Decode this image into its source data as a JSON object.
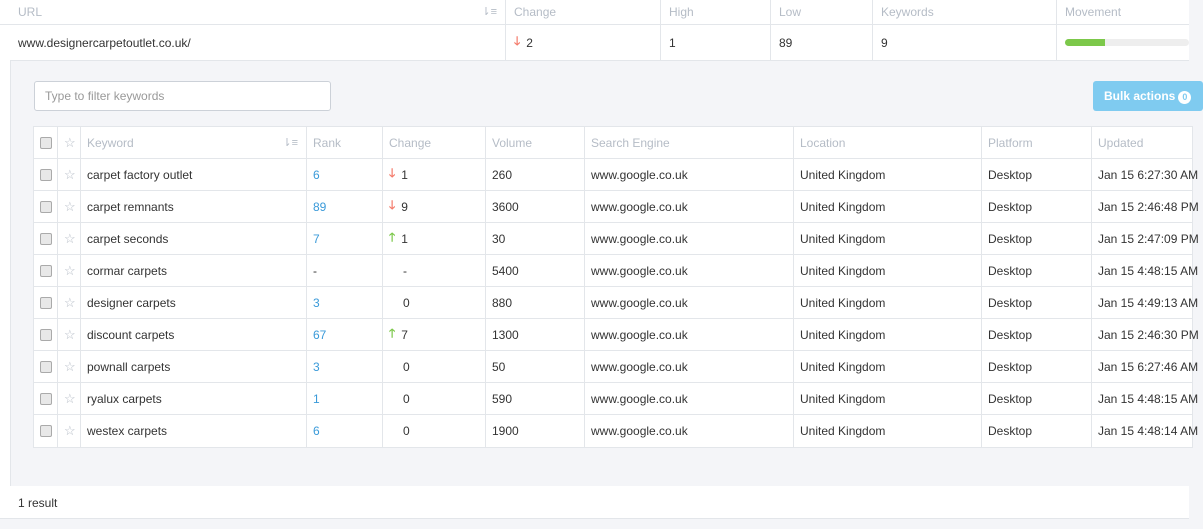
{
  "outer": {
    "headers": [
      "URL",
      "Change",
      "High",
      "Low",
      "Keywords",
      "Movement"
    ],
    "row": {
      "url": "www.designercarpetoutlet.co.uk/",
      "change": "2",
      "change_dir": "down",
      "high": "1",
      "low": "89",
      "keywords": "9",
      "movement_percent": 32
    }
  },
  "panel": {
    "filter_placeholder": "Type to filter keywords",
    "bulk_label": "Bulk actions",
    "bulk_count": "0",
    "headers": [
      "Keyword",
      "Rank",
      "Change",
      "Volume",
      "Search Engine",
      "Location",
      "Platform",
      "Updated"
    ],
    "rows": [
      {
        "keyword": "carpet factory outlet",
        "rank": "6",
        "dir": "down",
        "change": "1",
        "volume": "260",
        "engine": "www.google.co.uk",
        "location": "United Kingdom",
        "platform": "Desktop",
        "updated": "Jan 15 6:27:30 AM"
      },
      {
        "keyword": "carpet remnants",
        "rank": "89",
        "dir": "down",
        "change": "9",
        "volume": "3600",
        "engine": "www.google.co.uk",
        "location": "United Kingdom",
        "platform": "Desktop",
        "updated": "Jan 15 2:46:48 PM"
      },
      {
        "keyword": "carpet seconds",
        "rank": "7",
        "dir": "up",
        "change": "1",
        "volume": "30",
        "engine": "www.google.co.uk",
        "location": "United Kingdom",
        "platform": "Desktop",
        "updated": "Jan 15 2:47:09 PM"
      },
      {
        "keyword": "cormar carpets",
        "rank": "-",
        "dir": "",
        "change": "-",
        "volume": "5400",
        "engine": "www.google.co.uk",
        "location": "United Kingdom",
        "platform": "Desktop",
        "updated": "Jan 15 4:48:15 AM"
      },
      {
        "keyword": "designer carpets",
        "rank": "3",
        "dir": "",
        "change": "0",
        "volume": "880",
        "engine": "www.google.co.uk",
        "location": "United Kingdom",
        "platform": "Desktop",
        "updated": "Jan 15 4:49:13 AM"
      },
      {
        "keyword": "discount carpets",
        "rank": "67",
        "dir": "up",
        "change": "7",
        "volume": "1300",
        "engine": "www.google.co.uk",
        "location": "United Kingdom",
        "platform": "Desktop",
        "updated": "Jan 15 2:46:30 PM"
      },
      {
        "keyword": "pownall carpets",
        "rank": "3",
        "dir": "",
        "change": "0",
        "volume": "50",
        "engine": "www.google.co.uk",
        "location": "United Kingdom",
        "platform": "Desktop",
        "updated": "Jan 15 6:27:46 AM"
      },
      {
        "keyword": "ryalux carpets",
        "rank": "1",
        "dir": "",
        "change": "0",
        "volume": "590",
        "engine": "www.google.co.uk",
        "location": "United Kingdom",
        "platform": "Desktop",
        "updated": "Jan 15 4:48:15 AM"
      },
      {
        "keyword": "westex carpets",
        "rank": "6",
        "dir": "",
        "change": "0",
        "volume": "1900",
        "engine": "www.google.co.uk",
        "location": "United Kingdom",
        "platform": "Desktop",
        "updated": "Jan 15 4:48:14 AM"
      }
    ]
  },
  "footer": {
    "results": "1 result"
  },
  "colors": {
    "accent": "#3a9ad9",
    "down": "#f47c6c",
    "up": "#7cc84a",
    "bulk": "#7fcbf0"
  }
}
